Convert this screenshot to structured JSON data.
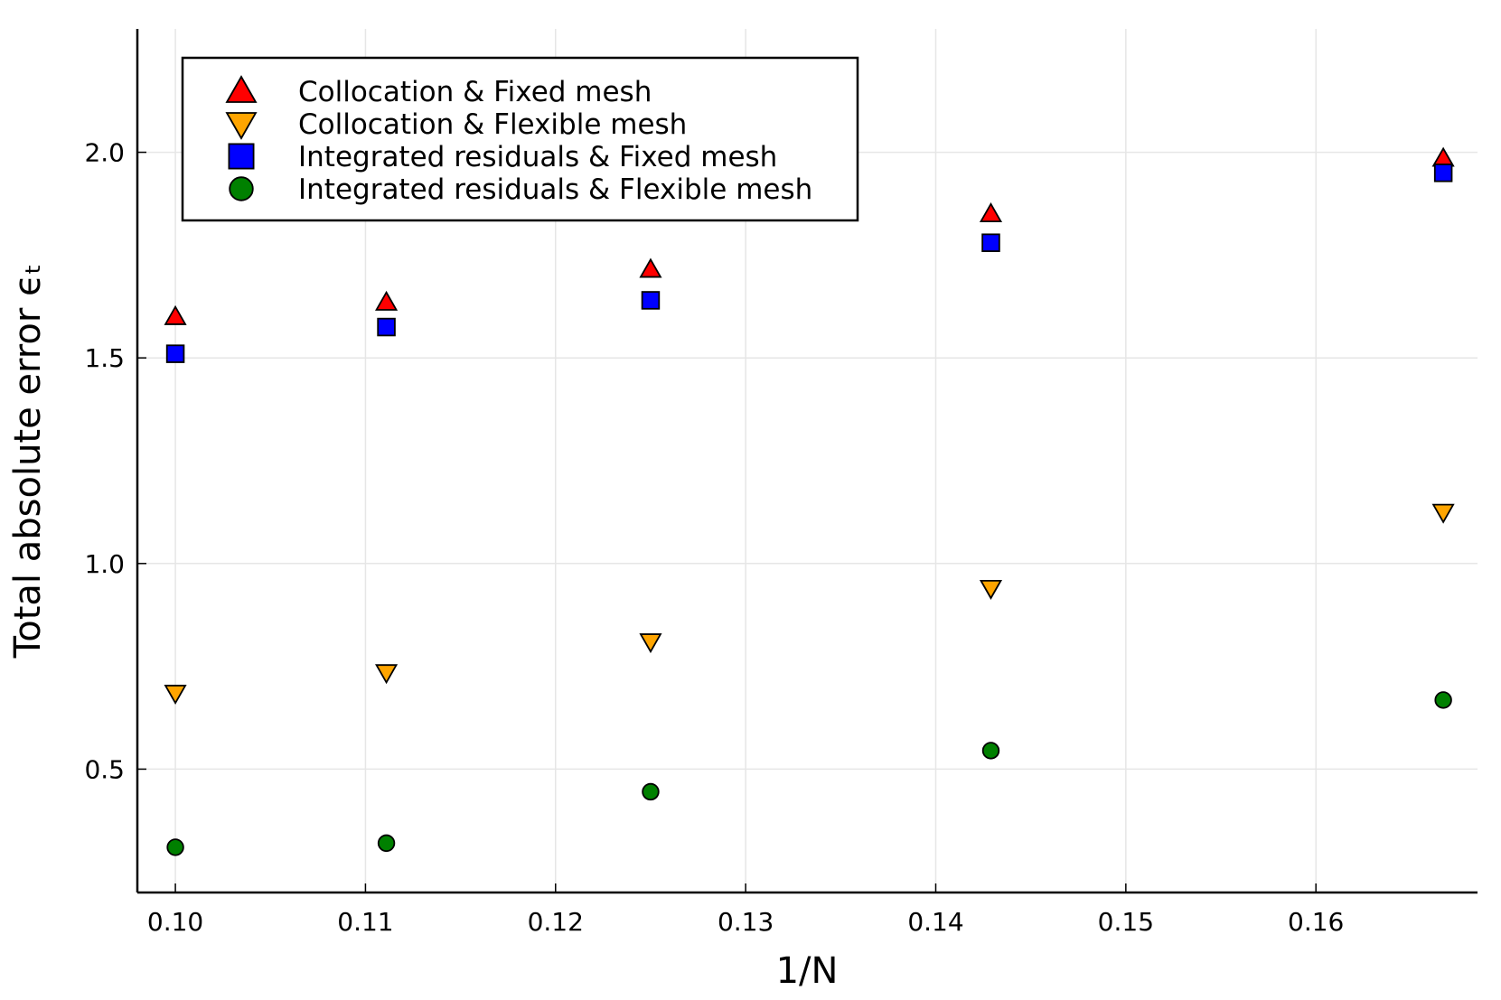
{
  "chart_data": {
    "type": "scatter",
    "xlabel": "1/N",
    "ylabel": "Total absolute error ϵₜ",
    "xlim": [
      0.098,
      0.1685
    ],
    "ylim": [
      0.2,
      2.3
    ],
    "xticks": [
      0.1,
      0.11,
      0.12,
      0.13,
      0.14,
      0.15,
      0.16
    ],
    "xtick_labels": [
      "0.10",
      "0.11",
      "0.12",
      "0.13",
      "0.14",
      "0.15",
      "0.16"
    ],
    "yticks": [
      0.5,
      1.0,
      1.5,
      2.0
    ],
    "ytick_labels": [
      "0.5",
      "1.0",
      "1.5",
      "2.0"
    ],
    "grid": true,
    "legend_position": "top-left",
    "x": [
      0.1,
      0.1111,
      0.125,
      0.1429,
      0.1667
    ],
    "series": [
      {
        "name": "Collocation & Fixed mesh",
        "marker": "triangle-up",
        "color": "#ff0000",
        "values": [
          1.6,
          1.635,
          1.715,
          1.85,
          1.985
        ]
      },
      {
        "name": "Collocation & Flexible mesh",
        "marker": "triangle-down",
        "color": "#ffa500",
        "values": [
          0.685,
          0.735,
          0.81,
          0.94,
          1.125
        ]
      },
      {
        "name": "Integrated residuals & Fixed mesh",
        "marker": "square",
        "color": "#0000ff",
        "values": [
          1.51,
          1.575,
          1.64,
          1.78,
          1.95
        ]
      },
      {
        "name": "Integrated residuals & Flexible mesh",
        "marker": "circle",
        "color": "#008000",
        "values": [
          0.31,
          0.32,
          0.445,
          0.545,
          0.668
        ]
      }
    ]
  }
}
